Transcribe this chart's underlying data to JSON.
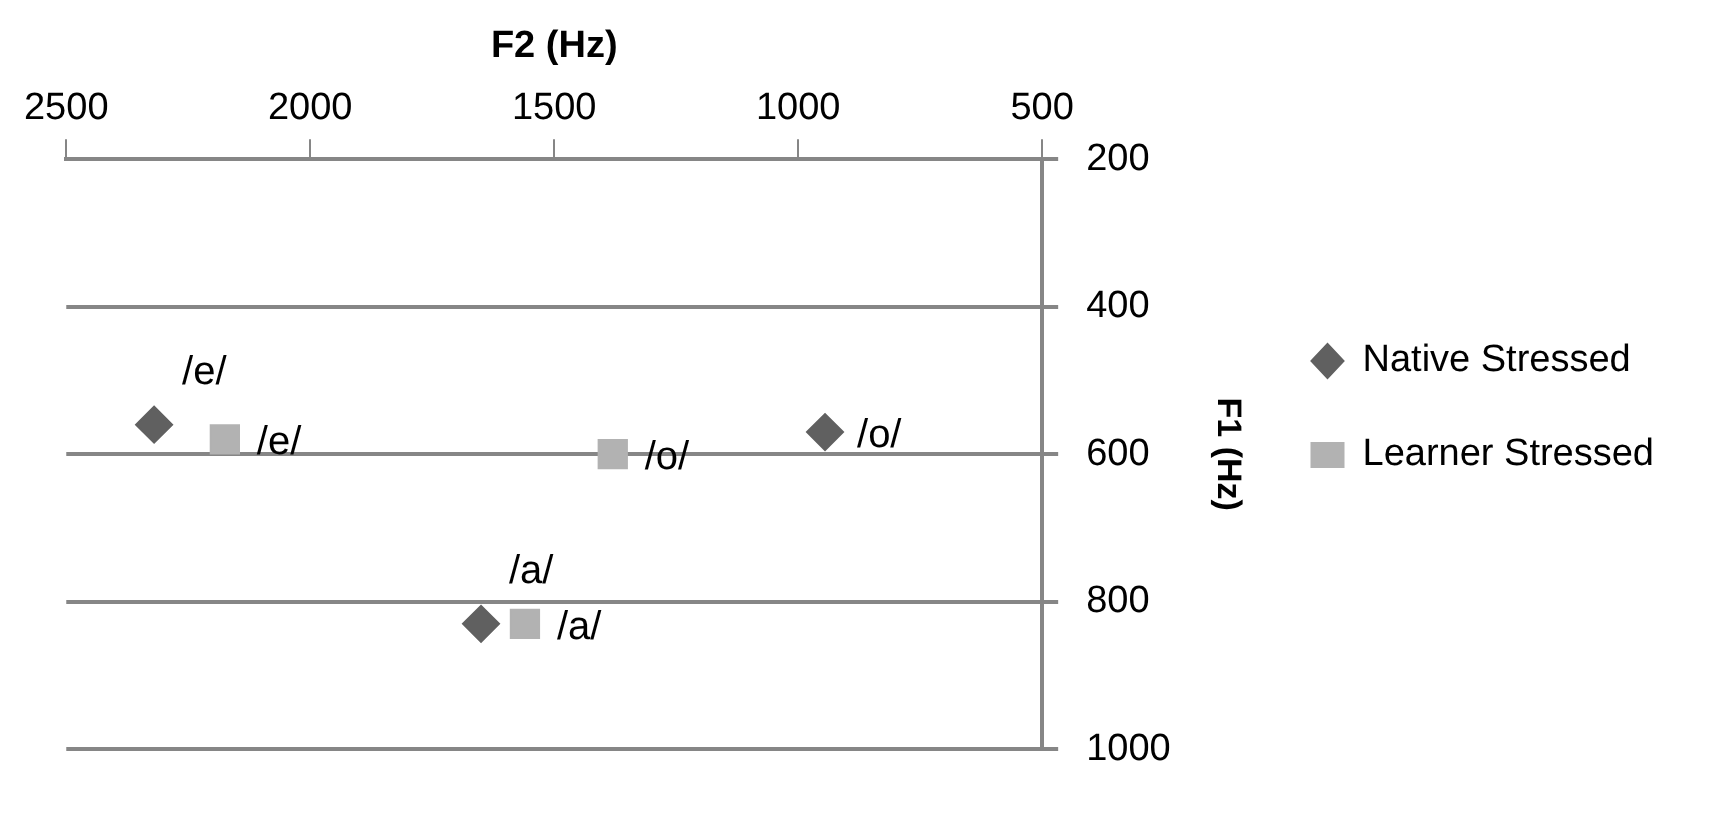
{
  "chart_data": {
    "type": "scatter",
    "xlabel": "F2 (Hz)",
    "ylabel": "F1 (Hz)",
    "series": [
      {
        "name": "Native Stressed",
        "color": "#606060",
        "marker": "diamond",
        "x": [
          2320,
          945,
          1650
        ],
        "values": [
          560,
          570,
          830
        ],
        "value_labels": [
          "/e/",
          "/o/",
          "/a/"
        ]
      },
      {
        "name": "Learner Stressed",
        "color": "#b2b2b2",
        "marker": "square",
        "x": [
          2175,
          1380,
          1560
        ],
        "values": [
          580,
          600,
          830
        ],
        "value_labels": [
          "/e/",
          "/o/",
          "/a/"
        ]
      }
    ],
    "xlim": [
      2500,
      500
    ],
    "xticks": [
      2500,
      2000,
      1500,
      1000,
      500
    ],
    "ylim": [
      1000,
      200
    ],
    "yticks": [
      200,
      400,
      600,
      800,
      1000
    ],
    "grid": "y",
    "legend": "right"
  }
}
